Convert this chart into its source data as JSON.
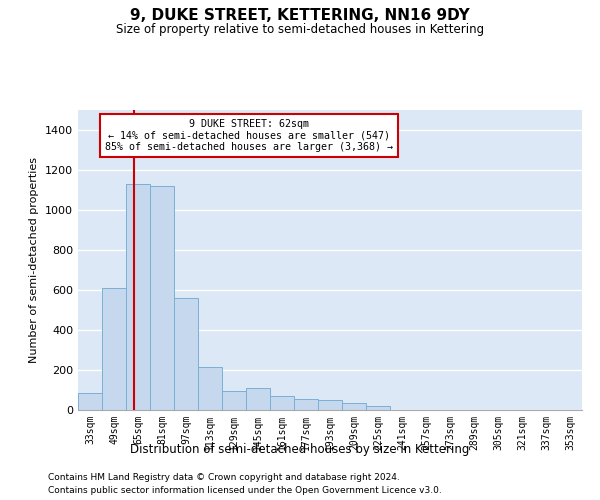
{
  "title": "9, DUKE STREET, KETTERING, NN16 9DY",
  "subtitle": "Size of property relative to semi-detached houses in Kettering",
  "xlabel": "Distribution of semi-detached houses by size in Kettering",
  "ylabel": "Number of semi-detached properties",
  "bar_color": "#c5d8ee",
  "bar_edge_color": "#7aafd4",
  "background_color": "#dce8f5",
  "pct_smaller": 14,
  "count_smaller": 547,
  "pct_larger": 85,
  "count_larger": 3368,
  "red_line_color": "#cc0000",
  "categories": [
    "33sqm",
    "49sqm",
    "65sqm",
    "81sqm",
    "97sqm",
    "113sqm",
    "129sqm",
    "145sqm",
    "161sqm",
    "177sqm",
    "193sqm",
    "209sqm",
    "225sqm",
    "241sqm",
    "257sqm",
    "273sqm",
    "289sqm",
    "305sqm",
    "321sqm",
    "337sqm",
    "353sqm"
  ],
  "values": [
    85,
    610,
    1130,
    1120,
    560,
    215,
    95,
    110,
    70,
    55,
    50,
    35,
    20,
    0,
    0,
    0,
    0,
    0,
    0,
    0,
    0
  ],
  "ylim": [
    0,
    1500
  ],
  "yticks": [
    0,
    200,
    400,
    600,
    800,
    1000,
    1200,
    1400
  ],
  "footnote1": "Contains HM Land Registry data © Crown copyright and database right 2024.",
  "footnote2": "Contains public sector information licensed under the Open Government Licence v3.0."
}
